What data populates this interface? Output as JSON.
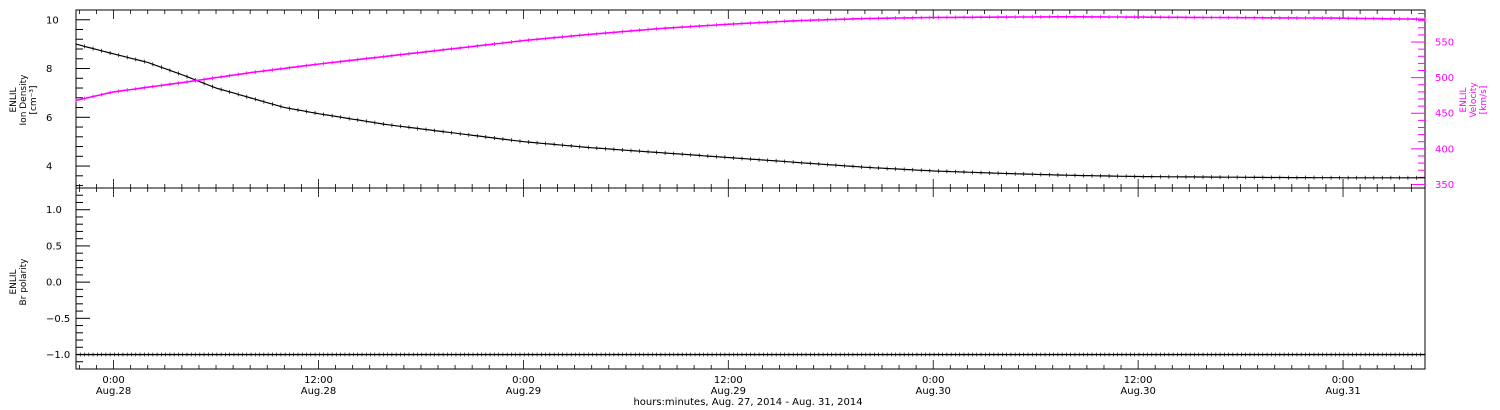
{
  "footer": {
    "xlabel": "hours:minutes, Aug. 27, 2014 - Aug. 31, 2014"
  },
  "x_ticks": [
    {
      "x": 24,
      "time": "0:00",
      "date": "Aug.28"
    },
    {
      "x": 36,
      "time": "12:00",
      "date": "Aug.28"
    },
    {
      "x": 48,
      "time": "0:00",
      "date": "Aug.29"
    },
    {
      "x": 60,
      "time": "12:00",
      "date": "Aug.29"
    },
    {
      "x": 72,
      "time": "0:00",
      "date": "Aug.30"
    },
    {
      "x": 84,
      "time": "12:00",
      "date": "Aug.30"
    },
    {
      "x": 96,
      "time": "0:00",
      "date": "Aug.31"
    }
  ],
  "colors": {
    "density": "#000000",
    "velocity": "#ff00ff",
    "polarity": "#000000",
    "axis": "#000000"
  },
  "chart_data": [
    {
      "type": "line",
      "x_unit": "hours since Aug. 27, 2014 0:00",
      "xlim": [
        21.8,
        100.8
      ],
      "left_axis": {
        "label_lines": [
          "ENLIL",
          "Ion Density",
          "[cm⁻³]"
        ],
        "ylim": [
          3.1,
          10.4
        ],
        "ticks": [
          4,
          6,
          8,
          10
        ],
        "color": "#000000"
      },
      "right_axis": {
        "label_lines": [
          "ENLIL",
          "Velocity",
          "[km/s]"
        ],
        "ylim": [
          345,
          595
        ],
        "ticks": [
          350,
          400,
          450,
          500,
          550
        ],
        "color": "#ff00ff"
      },
      "series": [
        {
          "axis": "left",
          "color": "#000000",
          "x": [
            21.8,
            24,
            26,
            28,
            30,
            32,
            34,
            36,
            40,
            44,
            48,
            52,
            56,
            60,
            64,
            68,
            72,
            76,
            80,
            84,
            88,
            92,
            96,
            100.8
          ],
          "y": [
            9.0,
            8.6,
            8.25,
            7.75,
            7.2,
            6.8,
            6.4,
            6.15,
            5.7,
            5.35,
            5.0,
            4.75,
            4.55,
            4.35,
            4.15,
            3.95,
            3.8,
            3.7,
            3.62,
            3.57,
            3.55,
            3.53,
            3.52,
            3.52
          ]
        },
        {
          "axis": "right",
          "color": "#ff00ff",
          "x": [
            21.8,
            24,
            28,
            32,
            36,
            40,
            44,
            48,
            52,
            56,
            60,
            64,
            68,
            72,
            76,
            80,
            84,
            88,
            92,
            96,
            100.8
          ],
          "y": [
            468,
            480,
            493,
            507,
            519,
            530,
            541,
            552,
            561,
            569,
            575,
            580,
            583,
            584.5,
            585,
            585.5,
            585,
            584.5,
            584,
            583.5,
            582
          ]
        }
      ]
    },
    {
      "type": "scatter",
      "x_unit": "hours since Aug. 27, 2014 0:00",
      "xlim": [
        21.8,
        100.8
      ],
      "left_axis": {
        "label_lines": [
          "ENLIL",
          "Br polarity"
        ],
        "ylim": [
          -1.2,
          1.3
        ],
        "ticks": [
          -1.0,
          -0.5,
          0.0,
          0.5,
          1.0
        ],
        "tick_labels": [
          "−1.0",
          "−0.5",
          "0.0",
          "0.5",
          "1.0"
        ]
      },
      "series": [
        {
          "color": "#000000",
          "x": [
            21.8,
            100.8
          ],
          "y": [
            -1,
            -1
          ],
          "sample_interval_hours": 0.25
        }
      ]
    }
  ]
}
